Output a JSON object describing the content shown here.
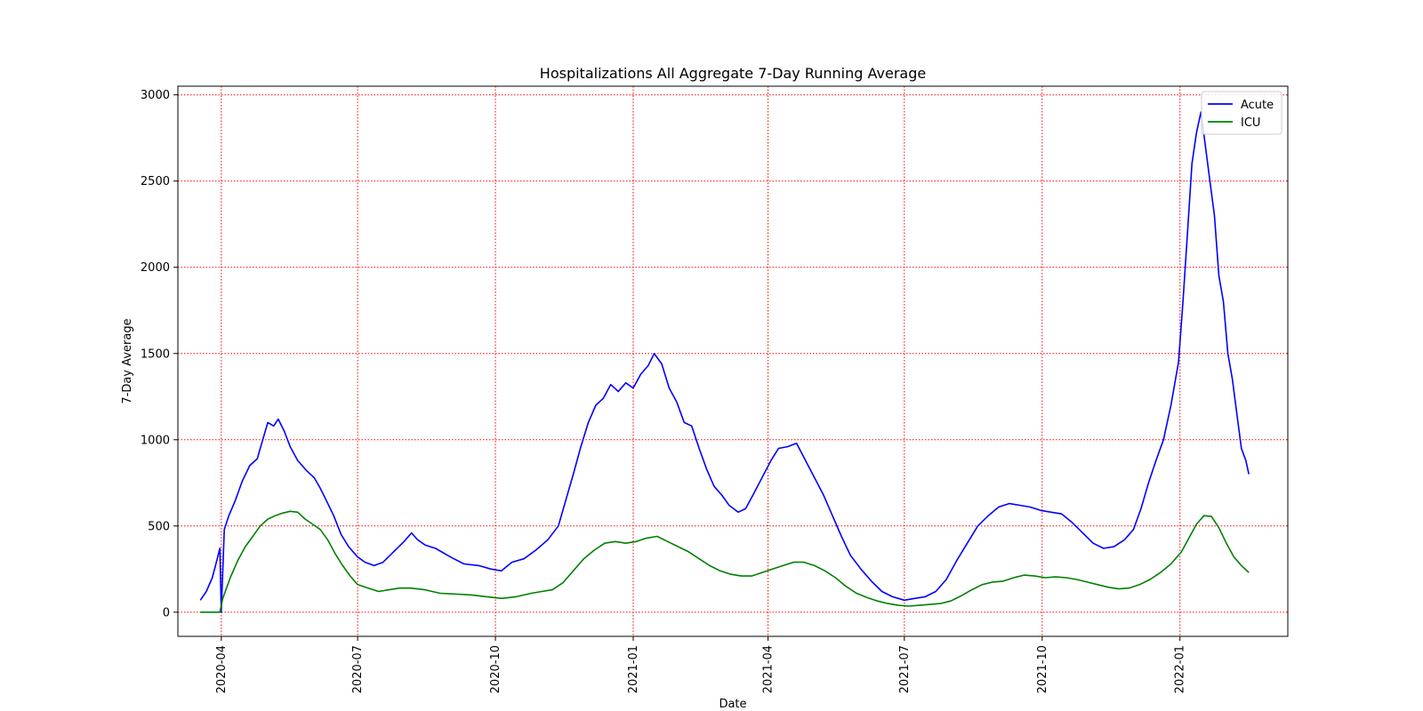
{
  "chart_data": {
    "type": "line",
    "title": "Hospitalizations All Aggregate 7-Day Running Average",
    "xlabel": "Date",
    "ylabel": "7-Day Average",
    "xlim": [
      "2020-03-03",
      "2022-03-14"
    ],
    "ylim": [
      -140,
      3050
    ],
    "x_ticks": [
      "2020-04",
      "2020-07",
      "2020-10",
      "2021-01",
      "2021-04",
      "2021-07",
      "2021-10",
      "2022-01"
    ],
    "y_ticks": [
      0,
      500,
      1000,
      1500,
      2000,
      2500,
      3000
    ],
    "grid": true,
    "grid_color": "#ff0000",
    "legend_position": "top-right",
    "series": [
      {
        "name": "Acute",
        "color": "#0000ff",
        "points": [
          [
            "2020-03-18",
            70
          ],
          [
            "2020-03-22",
            120
          ],
          [
            "2020-03-26",
            200
          ],
          [
            "2020-03-29",
            300
          ],
          [
            "2020-03-31",
            370
          ],
          [
            "2020-04-01",
            0
          ],
          [
            "2020-04-03",
            480
          ],
          [
            "2020-04-06",
            560
          ],
          [
            "2020-04-10",
            640
          ],
          [
            "2020-04-15",
            760
          ],
          [
            "2020-04-20",
            850
          ],
          [
            "2020-04-25",
            890
          ],
          [
            "2020-04-28",
            980
          ],
          [
            "2020-05-02",
            1100
          ],
          [
            "2020-05-06",
            1080
          ],
          [
            "2020-05-09",
            1120
          ],
          [
            "2020-05-13",
            1050
          ],
          [
            "2020-05-17",
            960
          ],
          [
            "2020-05-22",
            880
          ],
          [
            "2020-05-28",
            820
          ],
          [
            "2020-06-02",
            780
          ],
          [
            "2020-06-06",
            720
          ],
          [
            "2020-06-10",
            650
          ],
          [
            "2020-06-15",
            560
          ],
          [
            "2020-06-20",
            450
          ],
          [
            "2020-06-25",
            380
          ],
          [
            "2020-07-01",
            320
          ],
          [
            "2020-07-06",
            290
          ],
          [
            "2020-07-12",
            270
          ],
          [
            "2020-07-18",
            290
          ],
          [
            "2020-07-25",
            350
          ],
          [
            "2020-08-01",
            410
          ],
          [
            "2020-08-06",
            460
          ],
          [
            "2020-08-10",
            420
          ],
          [
            "2020-08-15",
            390
          ],
          [
            "2020-08-22",
            370
          ],
          [
            "2020-09-01",
            320
          ],
          [
            "2020-09-10",
            280
          ],
          [
            "2020-09-20",
            270
          ],
          [
            "2020-09-28",
            250
          ],
          [
            "2020-10-05",
            240
          ],
          [
            "2020-10-12",
            290
          ],
          [
            "2020-10-20",
            310
          ],
          [
            "2020-10-28",
            360
          ],
          [
            "2020-11-05",
            420
          ],
          [
            "2020-11-12",
            500
          ],
          [
            "2020-11-17",
            650
          ],
          [
            "2020-11-22",
            800
          ],
          [
            "2020-11-27",
            960
          ],
          [
            "2020-12-02",
            1100
          ],
          [
            "2020-12-07",
            1200
          ],
          [
            "2020-12-12",
            1240
          ],
          [
            "2020-12-17",
            1320
          ],
          [
            "2020-12-22",
            1280
          ],
          [
            "2020-12-27",
            1330
          ],
          [
            "2021-01-01",
            1300
          ],
          [
            "2021-01-06",
            1380
          ],
          [
            "2021-01-11",
            1430
          ],
          [
            "2021-01-15",
            1500
          ],
          [
            "2021-01-20",
            1440
          ],
          [
            "2021-01-25",
            1300
          ],
          [
            "2021-01-30",
            1220
          ],
          [
            "2021-02-04",
            1100
          ],
          [
            "2021-02-09",
            1080
          ],
          [
            "2021-02-14",
            950
          ],
          [
            "2021-02-19",
            830
          ],
          [
            "2021-02-24",
            730
          ],
          [
            "2021-03-01",
            680
          ],
          [
            "2021-03-06",
            620
          ],
          [
            "2021-03-12",
            580
          ],
          [
            "2021-03-17",
            600
          ],
          [
            "2021-03-22",
            680
          ],
          [
            "2021-03-28",
            780
          ],
          [
            "2021-04-03",
            880
          ],
          [
            "2021-04-08",
            950
          ],
          [
            "2021-04-14",
            960
          ],
          [
            "2021-04-20",
            980
          ],
          [
            "2021-04-26",
            880
          ],
          [
            "2021-05-02",
            780
          ],
          [
            "2021-05-08",
            680
          ],
          [
            "2021-05-14",
            560
          ],
          [
            "2021-05-20",
            440
          ],
          [
            "2021-05-26",
            330
          ],
          [
            "2021-06-02",
            250
          ],
          [
            "2021-06-09",
            180
          ],
          [
            "2021-06-16",
            120
          ],
          [
            "2021-06-23",
            90
          ],
          [
            "2021-07-01",
            70
          ],
          [
            "2021-07-08",
            80
          ],
          [
            "2021-07-15",
            90
          ],
          [
            "2021-07-22",
            120
          ],
          [
            "2021-07-29",
            190
          ],
          [
            "2021-08-05",
            300
          ],
          [
            "2021-08-12",
            400
          ],
          [
            "2021-08-19",
            500
          ],
          [
            "2021-08-26",
            560
          ],
          [
            "2021-09-02",
            610
          ],
          [
            "2021-09-09",
            630
          ],
          [
            "2021-09-16",
            620
          ],
          [
            "2021-09-23",
            610
          ],
          [
            "2021-09-30",
            590
          ],
          [
            "2021-10-07",
            580
          ],
          [
            "2021-10-14",
            570
          ],
          [
            "2021-10-21",
            520
          ],
          [
            "2021-10-28",
            460
          ],
          [
            "2021-11-04",
            400
          ],
          [
            "2021-11-11",
            370
          ],
          [
            "2021-11-18",
            380
          ],
          [
            "2021-11-25",
            420
          ],
          [
            "2021-12-01",
            480
          ],
          [
            "2021-12-06",
            600
          ],
          [
            "2021-12-11",
            750
          ],
          [
            "2021-12-16",
            880
          ],
          [
            "2021-12-21",
            1000
          ],
          [
            "2021-12-26",
            1200
          ],
          [
            "2021-12-31",
            1450
          ],
          [
            "2022-01-03",
            1800
          ],
          [
            "2022-01-06",
            2200
          ],
          [
            "2022-01-09",
            2600
          ],
          [
            "2022-01-12",
            2780
          ],
          [
            "2022-01-15",
            2900
          ],
          [
            "2022-01-18",
            2700
          ],
          [
            "2022-01-21",
            2500
          ],
          [
            "2022-01-24",
            2300
          ],
          [
            "2022-01-27",
            1950
          ],
          [
            "2022-01-30",
            1800
          ],
          [
            "2022-02-02",
            1500
          ],
          [
            "2022-02-05",
            1350
          ],
          [
            "2022-02-08",
            1150
          ],
          [
            "2022-02-11",
            950
          ],
          [
            "2022-02-14",
            880
          ],
          [
            "2022-02-16",
            800
          ]
        ]
      },
      {
        "name": "ICU",
        "color": "#008000",
        "points": [
          [
            "2020-03-18",
            0
          ],
          [
            "2020-03-31",
            0
          ],
          [
            "2020-04-02",
            80
          ],
          [
            "2020-04-07",
            200
          ],
          [
            "2020-04-12",
            300
          ],
          [
            "2020-04-17",
            380
          ],
          [
            "2020-04-22",
            440
          ],
          [
            "2020-04-27",
            500
          ],
          [
            "2020-05-02",
            540
          ],
          [
            "2020-05-07",
            560
          ],
          [
            "2020-05-12",
            575
          ],
          [
            "2020-05-17",
            585
          ],
          [
            "2020-05-22",
            580
          ],
          [
            "2020-05-27",
            540
          ],
          [
            "2020-06-01",
            510
          ],
          [
            "2020-06-06",
            480
          ],
          [
            "2020-06-11",
            420
          ],
          [
            "2020-06-16",
            340
          ],
          [
            "2020-06-21",
            270
          ],
          [
            "2020-06-26",
            210
          ],
          [
            "2020-07-01",
            160
          ],
          [
            "2020-07-08",
            140
          ],
          [
            "2020-07-15",
            120
          ],
          [
            "2020-07-22",
            130
          ],
          [
            "2020-07-29",
            140
          ],
          [
            "2020-08-05",
            140
          ],
          [
            "2020-08-15",
            130
          ],
          [
            "2020-08-25",
            110
          ],
          [
            "2020-09-05",
            105
          ],
          [
            "2020-09-15",
            100
          ],
          [
            "2020-09-25",
            90
          ],
          [
            "2020-10-05",
            80
          ],
          [
            "2020-10-15",
            90
          ],
          [
            "2020-10-25",
            110
          ],
          [
            "2020-11-01",
            120
          ],
          [
            "2020-11-08",
            130
          ],
          [
            "2020-11-15",
            170
          ],
          [
            "2020-11-22",
            240
          ],
          [
            "2020-11-29",
            310
          ],
          [
            "2020-12-06",
            360
          ],
          [
            "2020-12-13",
            400
          ],
          [
            "2020-12-20",
            410
          ],
          [
            "2020-12-27",
            400
          ],
          [
            "2021-01-03",
            410
          ],
          [
            "2021-01-10",
            430
          ],
          [
            "2021-01-17",
            440
          ],
          [
            "2021-01-24",
            410
          ],
          [
            "2021-01-31",
            380
          ],
          [
            "2021-02-07",
            350
          ],
          [
            "2021-02-14",
            310
          ],
          [
            "2021-02-21",
            270
          ],
          [
            "2021-02-28",
            240
          ],
          [
            "2021-03-07",
            220
          ],
          [
            "2021-03-14",
            210
          ],
          [
            "2021-03-21",
            210
          ],
          [
            "2021-03-28",
            230
          ],
          [
            "2021-04-04",
            250
          ],
          [
            "2021-04-11",
            270
          ],
          [
            "2021-04-18",
            290
          ],
          [
            "2021-04-25",
            290
          ],
          [
            "2021-05-02",
            270
          ],
          [
            "2021-05-09",
            240
          ],
          [
            "2021-05-16",
            200
          ],
          [
            "2021-05-23",
            150
          ],
          [
            "2021-05-30",
            110
          ],
          [
            "2021-06-06",
            85
          ],
          [
            "2021-06-13",
            65
          ],
          [
            "2021-06-20",
            50
          ],
          [
            "2021-06-27",
            40
          ],
          [
            "2021-07-04",
            35
          ],
          [
            "2021-07-11",
            40
          ],
          [
            "2021-07-18",
            45
          ],
          [
            "2021-07-25",
            50
          ],
          [
            "2021-08-01",
            65
          ],
          [
            "2021-08-08",
            95
          ],
          [
            "2021-08-15",
            130
          ],
          [
            "2021-08-22",
            160
          ],
          [
            "2021-08-29",
            175
          ],
          [
            "2021-09-05",
            180
          ],
          [
            "2021-09-12",
            200
          ],
          [
            "2021-09-19",
            215
          ],
          [
            "2021-09-26",
            210
          ],
          [
            "2021-10-03",
            200
          ],
          [
            "2021-10-10",
            205
          ],
          [
            "2021-10-17",
            200
          ],
          [
            "2021-10-24",
            190
          ],
          [
            "2021-10-31",
            175
          ],
          [
            "2021-11-07",
            160
          ],
          [
            "2021-11-14",
            145
          ],
          [
            "2021-11-21",
            135
          ],
          [
            "2021-11-28",
            140
          ],
          [
            "2021-12-05",
            160
          ],
          [
            "2021-12-12",
            190
          ],
          [
            "2021-12-19",
            230
          ],
          [
            "2021-12-26",
            280
          ],
          [
            "2022-01-02",
            350
          ],
          [
            "2022-01-07",
            430
          ],
          [
            "2022-01-12",
            510
          ],
          [
            "2022-01-17",
            560
          ],
          [
            "2022-01-22",
            555
          ],
          [
            "2022-01-27",
            490
          ],
          [
            "2022-02-01",
            400
          ],
          [
            "2022-02-06",
            320
          ],
          [
            "2022-02-11",
            270
          ],
          [
            "2022-02-16",
            230
          ]
        ]
      }
    ]
  }
}
